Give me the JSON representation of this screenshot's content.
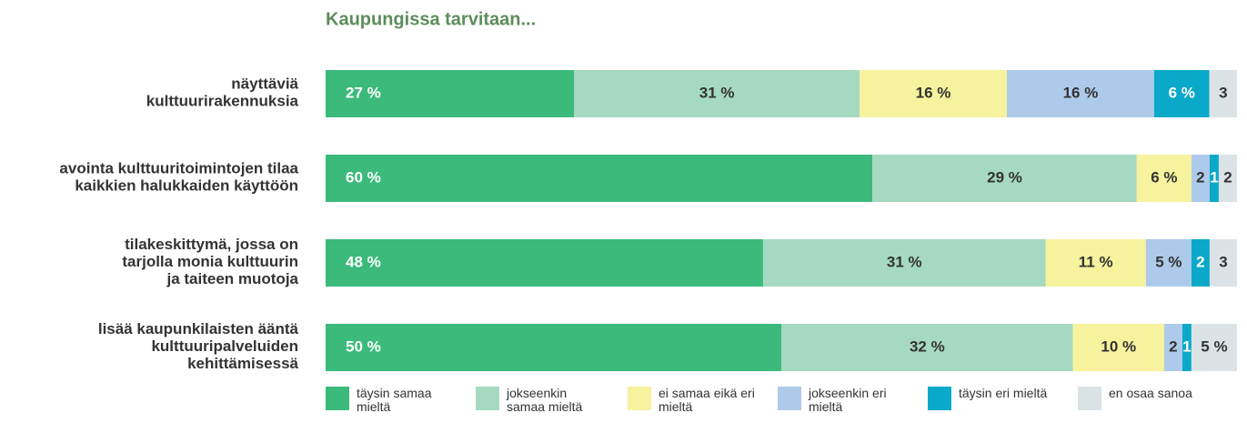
{
  "chart_data": {
    "type": "stacked-bar-horizontal",
    "title": "Kaupungissa tarvitaan...",
    "categories": [
      [
        "näyttäviä",
        "kulttuurirakennuksia"
      ],
      [
        "avointa kulttuuritoimintojen tilaa",
        "kaikkien halukkaiden käyttöön"
      ],
      [
        "tilakeskittymä, jossa on",
        "tarjolla monia kulttuurin",
        "ja taiteen muotoja"
      ],
      [
        "lisää kaupunkilaisten ääntä",
        "kulttuuripalveluiden",
        "kehittämisessä"
      ]
    ],
    "series": [
      {
        "name": "täysin samaa mieltä",
        "color": "#3bba7b",
        "label_color": "#ffffff",
        "values": [
          27,
          60,
          48,
          50
        ],
        "value_labels": [
          "27 %",
          "60 %",
          "48 %",
          "50 %"
        ]
      },
      {
        "name": "jokseenkin samaa mieltä",
        "color": "#a6d9c1",
        "label_color": "#333333",
        "values": [
          31,
          29,
          31,
          32
        ],
        "value_labels": [
          "31 %",
          "29 %",
          "31 %",
          "32 %"
        ]
      },
      {
        "name": "ei samaa eikä eri mieltä",
        "color": "#f6f29d",
        "label_color": "#333333",
        "values": [
          16,
          6,
          11,
          10
        ],
        "value_labels": [
          "16 %",
          "6 %",
          "11 %",
          "10 %"
        ]
      },
      {
        "name": "jokseenkin eri mieltä",
        "color": "#aecaea",
        "label_color": "#333333",
        "values": [
          16,
          2,
          5,
          2
        ],
        "value_labels": [
          "16 %",
          "2",
          "5 %",
          "2"
        ]
      },
      {
        "name": "täysin eri mieltä",
        "color": "#0aa9c9",
        "label_color": "#ffffff",
        "values": [
          6,
          1,
          2,
          1
        ],
        "value_labels": [
          "6 %",
          "1",
          "2",
          "1"
        ]
      },
      {
        "name": "en osaa sanoa",
        "color": "#dce3e6",
        "label_color": "#333333",
        "values": [
          3,
          2,
          3,
          5
        ],
        "value_labels": [
          "3",
          "2",
          "3",
          "5 %"
        ]
      }
    ]
  }
}
